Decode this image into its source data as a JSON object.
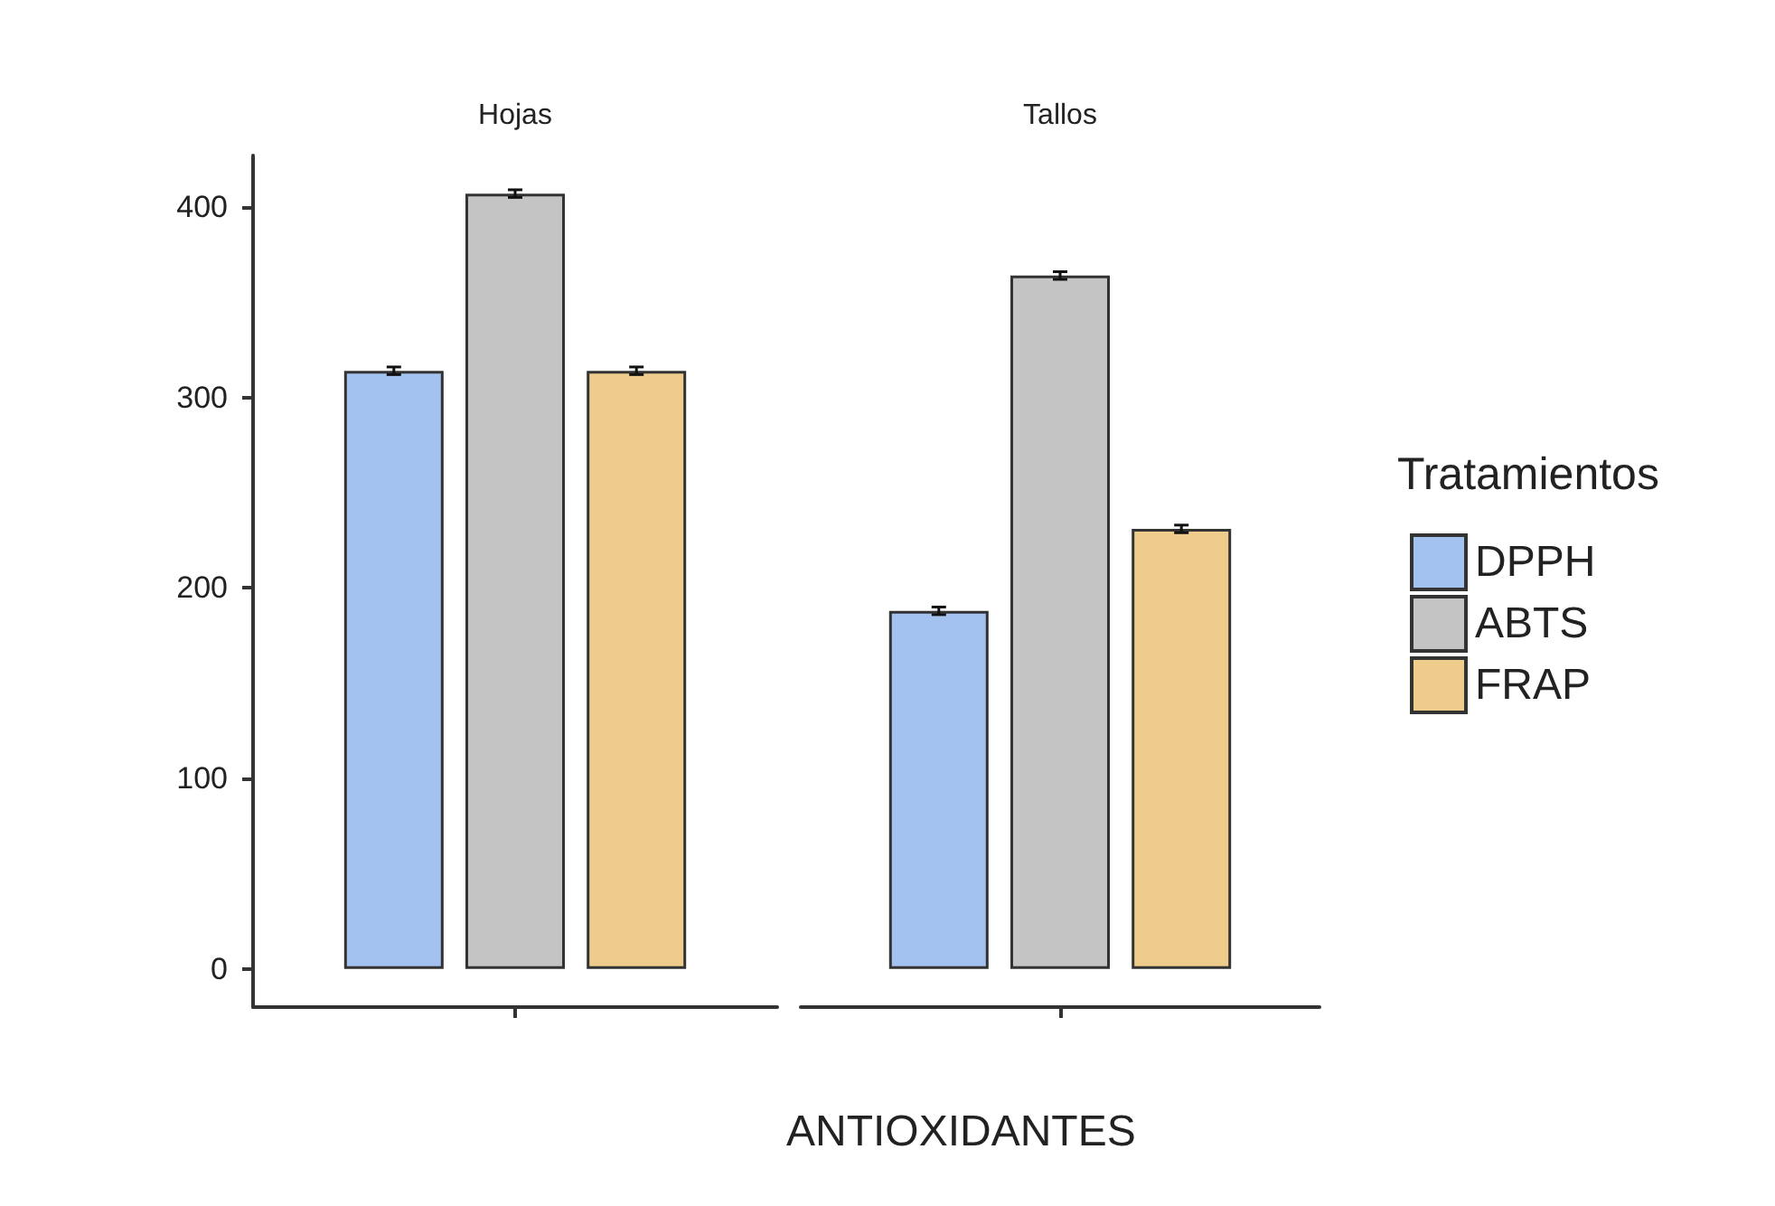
{
  "chart_data": {
    "type": "bar",
    "categories": [
      "Hojas",
      "Tallos"
    ],
    "xlabel": "ANTIOXIDANTES",
    "ylim": [
      -20,
      427
    ],
    "yticks": [
      0,
      100,
      200,
      300,
      400
    ],
    "grid": false,
    "legend": "right",
    "legend_title": "Tratamientos",
    "series": [
      {
        "name": "DPPH",
        "color": "#a4c2f0",
        "values": [
          314,
          188
        ],
        "errors": [
          2,
          2
        ]
      },
      {
        "name": "ABTS",
        "color": "#c4c4c4",
        "values": [
          407,
          364
        ],
        "errors": [
          2,
          2
        ]
      },
      {
        "name": "FRAP",
        "color": "#eecd8c",
        "values": [
          314,
          231
        ],
        "errors": [
          2,
          2
        ]
      }
    ]
  }
}
